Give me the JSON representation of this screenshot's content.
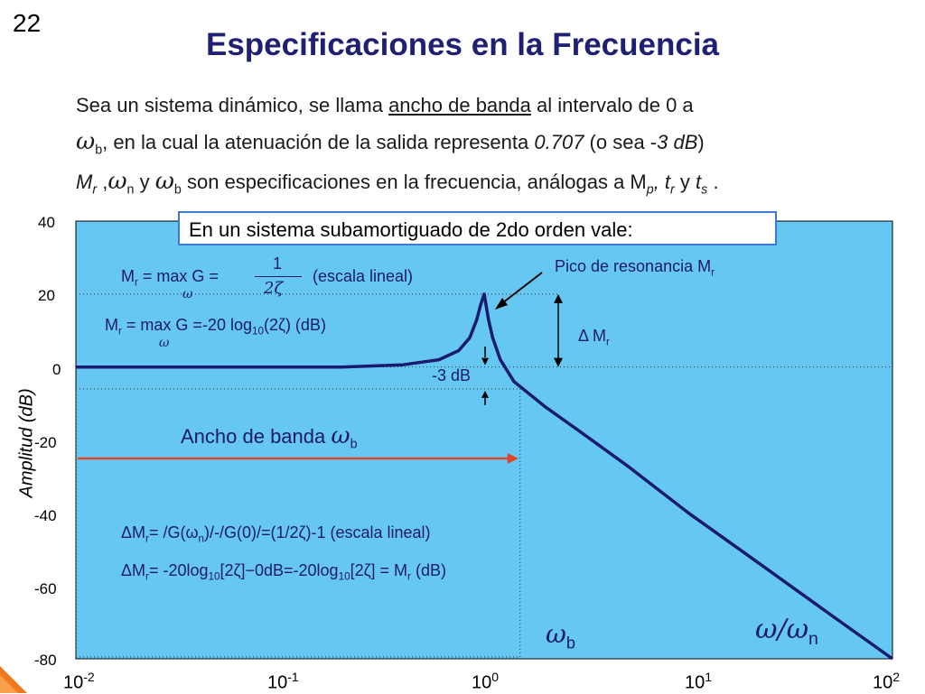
{
  "slide": {
    "number": "22",
    "title": "Especificaciones en la Frecuencia",
    "line1_pre": "Sea un sistema dinámico, se llama ",
    "line1_link": "ancho de banda",
    "line1_post": " al intervalo de 0 a",
    "line2_sym": "ω",
    "line2_sub": "b",
    "line2_text": ", en la cual la atenuación de la salida representa ",
    "line2_val": "0.707",
    "line2_paren": " (o sea -",
    "line2_db": "3 dB",
    "line2_close": ")",
    "line3_text": "M",
    "line3_sub_r": "r",
    "line3_sep": " ,",
    "line3_wn": "ω",
    "line3_sub_n": "n",
    "line3_y": " y ",
    "line3_wb": "ω",
    "line3_sub_b": "b",
    "line3_rest": " son especificaciones en la frecuencia, análogas a M",
    "line3_sub_p": "p",
    "line3_comma": ", t",
    "line3_sub_r2": "r",
    "line3_y2": " y ",
    "line3_t": "t",
    "line3_sub_s": "s",
    "line3_end": " ."
  },
  "note_box": "En un sistema subamortiguado de 2do orden vale:",
  "annotations": {
    "mr_formula_lhs": "M",
    "mr_formula_lhs_sub": "r",
    "mr_formula_eq": " = max G =",
    "mr_formula_num": "1",
    "mr_formula_den": "2ζ",
    "mr_formula_under": "ω",
    "mr_formula_note": "(escala lineal)",
    "mr_db_lhs": "M",
    "mr_db_lhs_sub": "r",
    "mr_db_eq": " = max G =-20 log",
    "mr_db_sub": "10",
    "mr_db_rest": "(2ζ) (dB)",
    "mr_db_under": "ω",
    "peak_label": "Pico de resonancia M",
    "peak_label_sub": "r",
    "delta_mr": "Δ M",
    "delta_mr_sub": "r",
    "minus3db": "-3 dB",
    "bandwidth": "Ancho de banda ",
    "bandwidth_sym": "ω",
    "bandwidth_sub": "b",
    "dmr1_a": "ΔM",
    "dmr1_sub": "r",
    "dmr1_b": "= /G(ω",
    "dmr1_sub2": "n",
    "dmr1_c": ")/-/G(0)/=(1/2ζ)-1  (escala lineal)",
    "dmr2_a": "ΔM",
    "dmr2_sub": "r",
    "dmr2_b": "= -20log",
    "dmr2_sub2": "10",
    "dmr2_c": "[2ζ]−0dB=-20log",
    "dmr2_sub3": "10",
    "dmr2_d": "[2ζ] = M",
    "dmr2_sub4": "r",
    "dmr2_e": " (dB)",
    "wb_label": "ω",
    "wb_label_sub": "b",
    "wwn_label": "ω/ω",
    "wwn_label_sub": "n"
  },
  "axes": {
    "ylabel": "Amplitud (dB)",
    "yticks": [
      "40",
      "20",
      "0",
      "-20",
      "-40",
      "-60",
      "-80"
    ],
    "xticks_base": [
      "10",
      "10",
      "10",
      "10",
      "10"
    ],
    "xticks_exp": [
      "-2",
      "-1",
      "0",
      "1",
      "2"
    ]
  },
  "colors": {
    "plot_bg": "#66c8f2",
    "curve": "#1a1a6e",
    "arrow_bandwidth": "#e0452a",
    "title": "#1f1f73"
  },
  "chart_data": {
    "type": "line",
    "x_scale": "log",
    "xlim": [
      0.01,
      100
    ],
    "ylim": [
      -80,
      40
    ],
    "ylabel": "Amplitud (dB)",
    "series": [
      {
        "x": [
          0.01,
          0.03,
          0.1,
          0.2,
          0.4,
          0.6,
          0.75,
          0.85,
          0.92,
          0.96,
          1.0,
          1.05,
          1.1,
          1.2,
          1.4,
          2.0,
          3.0,
          5.0,
          10.0,
          20.0,
          50.0,
          100.0
        ],
        "y": [
          0,
          0,
          0,
          0,
          0.6,
          2,
          4.5,
          8,
          13,
          17,
          20,
          13,
          8,
          2,
          -4,
          -11,
          -18,
          -27,
          -40,
          -52,
          -68,
          -80
        ]
      }
    ],
    "reference_lines_y": [
      20,
      0,
      -6
    ],
    "annotations": [
      "Pico de resonancia Mr",
      "-3 dB",
      "Δ Mr",
      "Ancho de banda ωb"
    ]
  }
}
